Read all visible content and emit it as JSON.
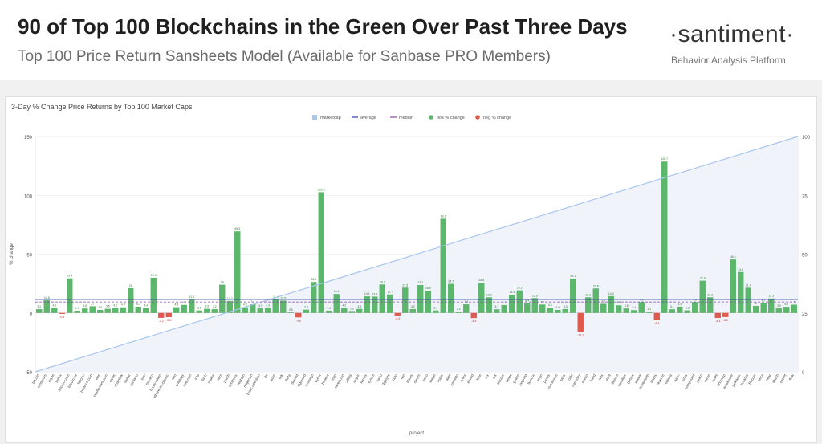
{
  "header": {
    "title": "90 of Top 100 Blockchains in the Green Over Past Three Days",
    "subtitle": "Top 100 Price Return Sansheets Model (Available for Sanbase PRO Members)",
    "brand": "·santiment·",
    "tagline": "Behavior Analysis Platform"
  },
  "colors": {
    "pos": "#5cb66c",
    "neg": "#e05a4f",
    "marketcap": "#a9c6ec",
    "average": "#2b3a9e",
    "median": "#8e44ad"
  },
  "chart_data": {
    "type": "bar",
    "title": "3-Day % Change Price Returns by Top 100 Market Caps",
    "xlabel": "project",
    "ylabel": "% change",
    "ylim": [
      -50,
      150
    ],
    "y2lim": [
      0,
      100
    ],
    "yticks": [
      -50,
      0,
      50,
      100,
      150
    ],
    "y2ticks": [
      0,
      25,
      50,
      75,
      100
    ],
    "grid": true,
    "legend_position": "top-center",
    "legend": [
      "marketcap",
      "average",
      "median",
      "pos % change",
      "neg % change"
    ],
    "average": 11.5,
    "median": 9.3,
    "marketcap_line": {
      "from": -50,
      "to": 150
    },
    "categories": [
      "bitcoin",
      "ethereum",
      "ripple",
      "tether",
      "bitcoin-cash",
      "bitcoin-sv",
      "litecoin",
      "binance-coin",
      "eos",
      "crypto-com-coin",
      "tezos",
      "chainlink",
      "stellar",
      "cardano",
      "tron",
      "monero",
      "huobi-token",
      "ethereum-classic",
      "neo",
      "ontology",
      "usd-coin",
      "iota",
      "dash",
      "maker",
      "nem",
      "zcash",
      "synthetix",
      "vechain",
      "dogecoin",
      "basic-attention",
      "0x",
      "qtum",
      "lisk",
      "theta",
      "decred",
      "algorand",
      "omisego",
      "kyber",
      "hedera",
      "icon",
      "ravencoin",
      "zilliqa",
      "augur",
      "waves",
      "bytom",
      "nano",
      "digibyte",
      "holo",
      "ren",
      "status",
      "steem",
      "nexo",
      "swipe",
      "matic",
      "aion",
      "komodo",
      "ardor",
      "elrond",
      "hive",
      "icx",
      "ark",
      "siacoin",
      "verge",
      "golem",
      "loopring",
      "bancor",
      "enjin",
      "paxos",
      "numeraire",
      "kava",
      "celo",
      "harmony",
      "ocean",
      "band",
      "wax",
      "dent",
      "fantom",
      "iostoken",
      "gnosis",
      "energi",
      "ampleforth",
      "stratis",
      "reserve",
      "solana",
      "aave",
      "uma",
      "compound",
      "yearn",
      "curve",
      "sushi",
      "uniswap",
      "avalanche",
      "polkadot",
      "kusama",
      "filecoin",
      "terra",
      "near",
      "akash",
      "secret",
      "flow"
    ],
    "series": [
      {
        "name": "pos % change",
        "values": [
          3.2,
          10.8,
          4.1,
          0,
          29.4,
          1.9,
          3.8,
          5.7,
          2.6,
          3.5,
          4.2,
          4.8,
          21.0,
          5.3,
          4.4,
          29.9,
          0,
          0,
          4.9,
          6.8,
          11.3,
          2.1,
          3.5,
          3.2,
          24.0,
          10.2,
          69.3,
          4.8,
          7.4,
          3.9,
          4.3,
          11.4,
          10.5,
          0.5,
          0,
          2.8,
          26.3,
          102.6,
          1.9,
          16.1,
          4.2,
          1.6,
          3.4,
          14.1,
          13.9,
          24.2,
          15.7,
          0,
          21.5,
          3.3,
          23.7,
          18.9,
          2.1,
          80.1,
          24.7,
          1.2,
          7.3,
          0,
          25.6,
          13.3,
          3.1,
          6.7,
          15.4,
          19.2,
          8.4,
          12.6,
          7.1,
          4.5,
          2.6,
          3.3,
          29.1,
          0,
          13.3,
          20.8,
          7.7,
          14.3,
          6.5,
          3.8,
          2.4,
          9.1,
          1.2,
          0,
          128.7,
          3.1,
          5.4,
          2.2,
          9.2,
          27.4,
          13.3,
          0,
          0,
          45.5,
          34.8,
          21.4,
          6.0,
          8.7,
          12.3,
          3.9,
          5.2,
          7.0
        ],
        "labels": [
          3.2,
          10.8,
          4.1,
          0,
          29.4,
          1.9,
          3.8,
          5.7,
          2.6,
          3.5,
          4.2,
          4.8,
          21.0,
          5.3,
          4.4,
          29.9,
          0,
          0,
          4.9,
          6.8,
          11.3,
          2.1,
          3.5,
          3.2,
          24.0,
          10.2,
          69.3,
          4.8,
          7.4,
          3.9,
          4.3,
          11.4,
          10.5,
          0.5,
          0,
          2.8,
          26.3,
          102.6,
          1.9,
          16.1,
          4.2,
          1.6,
          3.4,
          14.1,
          13.9,
          24.2,
          15.7,
          0,
          21.5,
          3.3,
          23.7,
          18.9,
          2.1,
          80.1,
          24.7,
          1.2,
          7.3,
          0,
          25.6,
          13.3,
          3.1,
          6.7,
          15.4,
          19.2,
          8.4,
          12.6,
          7.1,
          4.5,
          2.6,
          3.3,
          29.1,
          0,
          13.3,
          20.8,
          7.7,
          14.3,
          6.5,
          3.8,
          2.4,
          9.1,
          1.2,
          0,
          128.7,
          3.1,
          5.4,
          2.2,
          9.2,
          27.4,
          13.3,
          0,
          0,
          45.5,
          34.8,
          21.4,
          6.0,
          8.7,
          12.3,
          3.9,
          5.2,
          7.0
        ]
      },
      {
        "name": "neg % change",
        "values": [
          0,
          0,
          0,
          -0.8,
          0,
          0,
          0,
          0,
          0,
          0,
          0,
          0,
          0,
          0,
          0,
          0,
          -4.2,
          -3.6,
          0,
          0,
          0,
          0,
          0,
          0,
          0,
          0,
          0,
          0,
          0,
          0,
          0,
          0,
          0,
          0,
          -3.8,
          0,
          0,
          0,
          0,
          0,
          0,
          0,
          0,
          0,
          0,
          0,
          0,
          -2.2,
          0,
          0,
          0,
          0,
          0,
          0,
          0,
          0,
          0,
          -4.4,
          0,
          0,
          0,
          0,
          0,
          0,
          0,
          0,
          0,
          0,
          0,
          0,
          0,
          -16.1,
          0,
          0,
          0,
          0,
          0,
          0,
          0,
          0,
          0,
          -6.3,
          0,
          0,
          0,
          0,
          0,
          0,
          0,
          -4.3,
          -3.5,
          0,
          0,
          0,
          0,
          0,
          0,
          0,
          0,
          0
        ],
        "labels": [
          0,
          0,
          0,
          -0.8,
          0,
          0,
          0,
          0,
          0,
          0,
          0,
          0,
          0,
          0,
          0,
          0,
          -4.2,
          -3.6,
          0,
          0,
          0,
          0,
          0,
          0,
          0,
          0,
          0,
          0,
          0,
          0,
          0,
          0,
          0,
          0,
          -3.8,
          0,
          0,
          0,
          0,
          0,
          0,
          0,
          0,
          0,
          0,
          0,
          0,
          -2.2,
          0,
          0,
          0,
          0,
          0,
          0,
          0,
          0,
          0,
          -4.4,
          0,
          0,
          0,
          0,
          0,
          0,
          0,
          0,
          0,
          0,
          0,
          0,
          0,
          -16.1,
          0,
          0,
          0,
          0,
          0,
          0,
          0,
          0,
          0,
          -6.3,
          0,
          0,
          0,
          0,
          0,
          0,
          0,
          -4.3,
          -3.5,
          0,
          0,
          0,
          0,
          0,
          0,
          0,
          0,
          0
        ]
      }
    ]
  }
}
